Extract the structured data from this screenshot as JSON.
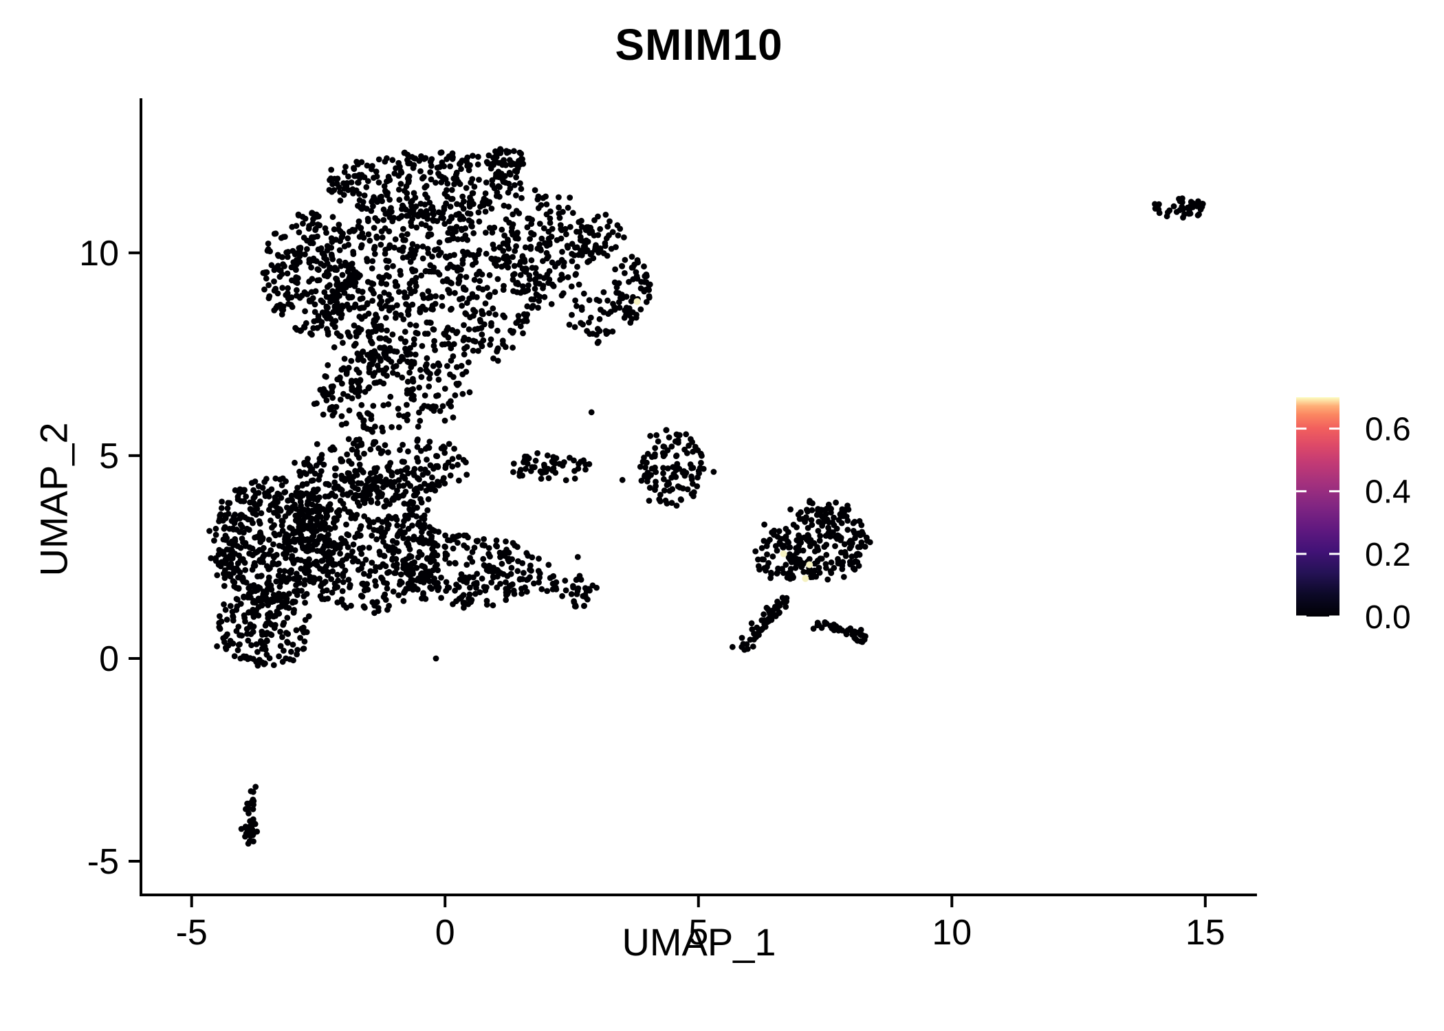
{
  "title": "SMIM10",
  "chart_data": {
    "type": "scatter",
    "title": "SMIM10",
    "xlabel": "UMAP_1",
    "ylabel": "UMAP_2",
    "xlim": [
      -6.0,
      16.02
    ],
    "ylim": [
      -5.83,
      13.81
    ],
    "x_ticks": [
      -5,
      0,
      5,
      10,
      15
    ],
    "y_ticks": [
      -5,
      0,
      5,
      10
    ],
    "grid": false,
    "legend_position": "right",
    "point_color_zero": "#000004",
    "highlight_color": "#f5f1c1",
    "point_radius_px": 4.4,
    "colorbar": {
      "ticks": [
        0.0,
        0.2,
        0.4,
        0.6
      ],
      "value_range": [
        0.0,
        0.7
      ],
      "palette": "magma",
      "stops": [
        [
          0.0,
          "#000004"
        ],
        [
          0.1,
          "#0c0927"
        ],
        [
          0.2,
          "#251256"
        ],
        [
          0.3,
          "#421277"
        ],
        [
          0.4,
          "#611980"
        ],
        [
          0.5,
          "#802582"
        ],
        [
          0.6,
          "#a1307e"
        ],
        [
          0.7,
          "#c23a75"
        ],
        [
          0.78,
          "#dd4968"
        ],
        [
          0.86,
          "#f2605d"
        ],
        [
          0.92,
          "#fb8661"
        ],
        [
          0.96,
          "#feae77"
        ],
        [
          1.0,
          "#fcfdbf"
        ]
      ]
    },
    "clusters": [
      {
        "name": "upper-lobe-top-band",
        "kind": "blob",
        "cx": -0.37,
        "cy": 11.66,
        "rx": 1.9,
        "ry": 0.85,
        "n": 280
      },
      {
        "name": "upper-lobe-left",
        "kind": "blob",
        "cx": -2.67,
        "cy": 9.46,
        "rx": 0.95,
        "ry": 1.53,
        "n": 240
      },
      {
        "name": "upper-lobe-core",
        "kind": "blob",
        "cx": -0.37,
        "cy": 9.12,
        "rx": 2.17,
        "ry": 2.03,
        "n": 620
      },
      {
        "name": "upper-lobe-bottom",
        "kind": "blob",
        "cx": -1.18,
        "cy": 6.58,
        "rx": 1.49,
        "ry": 1.02,
        "n": 200
      },
      {
        "name": "upper-lobe-apex",
        "kind": "blob",
        "cx": 1.22,
        "cy": 12.25,
        "rx": 0.34,
        "ry": 0.34,
        "n": 40
      },
      {
        "name": "upper-lobe-right",
        "kind": "blob",
        "cx": 1.94,
        "cy": 10.14,
        "rx": 0.81,
        "ry": 1.36,
        "n": 150
      },
      {
        "name": "right-arm-1",
        "kind": "blob",
        "cx": 3.03,
        "cy": 10.31,
        "rx": 0.54,
        "ry": 0.59,
        "n": 55
      },
      {
        "name": "right-arm-hook",
        "kind": "blob",
        "cx": 3.64,
        "cy": 9.12,
        "rx": 0.41,
        "ry": 0.76,
        "n": 65
      },
      {
        "name": "right-arm-lower",
        "kind": "blob",
        "cx": 2.89,
        "cy": 8.36,
        "rx": 0.47,
        "ry": 0.68,
        "n": 35
      },
      {
        "name": "lower-lobe-top-band",
        "kind": "blob",
        "cx": -1.18,
        "cy": 4.71,
        "rx": 1.63,
        "ry": 0.76,
        "n": 210
      },
      {
        "name": "lower-lobe-core",
        "kind": "blob",
        "cx": -3.35,
        "cy": 2.85,
        "rx": 1.22,
        "ry": 1.61,
        "n": 500
      },
      {
        "name": "lower-lobe-mid",
        "kind": "blob",
        "cx": -1.59,
        "cy": 2.85,
        "rx": 1.49,
        "ry": 1.69,
        "n": 430
      },
      {
        "name": "lower-lobe-wedge",
        "kind": "blob",
        "cx": 0.45,
        "cy": 2.17,
        "rx": 1.49,
        "ry": 0.93,
        "n": 230
      },
      {
        "name": "lower-lobe-bottom",
        "kind": "blob",
        "cx": -3.56,
        "cy": 0.73,
        "rx": 0.95,
        "ry": 0.93,
        "n": 170
      },
      {
        "name": "lower-lobe-streak",
        "kind": "blob",
        "cx": 2.08,
        "cy": 4.71,
        "rx": 0.81,
        "ry": 0.37,
        "n": 55
      },
      {
        "name": "lower-lobe-tip",
        "kind": "blob",
        "cx": 2.48,
        "cy": 1.66,
        "rx": 0.54,
        "ry": 0.42,
        "n": 40
      },
      {
        "name": "small-center-cluster",
        "kind": "blob",
        "cx": 4.45,
        "cy": 4.71,
        "rx": 0.65,
        "ry": 0.93,
        "n": 110
      },
      {
        "name": "mid-right-main",
        "kind": "blob",
        "cx": 7.5,
        "cy": 2.85,
        "rx": 0.84,
        "ry": 0.93,
        "n": 175
      },
      {
        "name": "mid-right-left",
        "kind": "blob",
        "cx": 6.62,
        "cy": 2.51,
        "rx": 0.47,
        "ry": 0.68,
        "n": 65
      },
      {
        "name": "mid-right-arm",
        "kind": "line",
        "x1": 6.69,
        "y1": 1.49,
        "x2": 5.81,
        "y2": 0.14,
        "w": 0.25,
        "n": 55
      },
      {
        "name": "mid-right-streak",
        "kind": "line",
        "x1": 7.3,
        "y1": 0.9,
        "x2": 8.34,
        "y2": 0.47,
        "w": 0.18,
        "n": 45
      },
      {
        "name": "mid-right-top-sparse",
        "kind": "blob",
        "cx": 7.37,
        "cy": 3.61,
        "rx": 0.61,
        "ry": 0.31,
        "n": 22
      },
      {
        "name": "far-right-cluster",
        "kind": "blob",
        "cx": 14.52,
        "cy": 11.1,
        "rx": 0.57,
        "ry": 0.24,
        "n": 45
      },
      {
        "name": "bottom-left-snake",
        "kind": "line",
        "x1": -3.79,
        "y1": -3.08,
        "x2": -3.89,
        "y2": -4.53,
        "w": 0.16,
        "n": 26
      },
      {
        "name": "bottom-left-blob",
        "kind": "blob",
        "cx": -3.87,
        "cy": -4.31,
        "rx": 0.22,
        "ry": 0.31,
        "n": 14
      }
    ],
    "single_points": [
      [
        2.62,
        2.5
      ],
      [
        3.5,
        4.4
      ],
      [
        4.9,
        4.0
      ],
      [
        2.89,
        6.07
      ],
      [
        6.3,
        3.3
      ],
      [
        -4.5,
        0.3
      ],
      [
        -0.18,
        0.0
      ],
      [
        5.3,
        4.6
      ]
    ],
    "highlight_points": [
      {
        "x": 3.79,
        "y": 8.8,
        "value": 0.65
      },
      {
        "x": 6.68,
        "y": 2.58,
        "value": 0.65
      },
      {
        "x": 7.19,
        "y": 2.31,
        "value": 0.6
      },
      {
        "x": 7.11,
        "y": 1.97,
        "value": 0.6
      }
    ]
  }
}
